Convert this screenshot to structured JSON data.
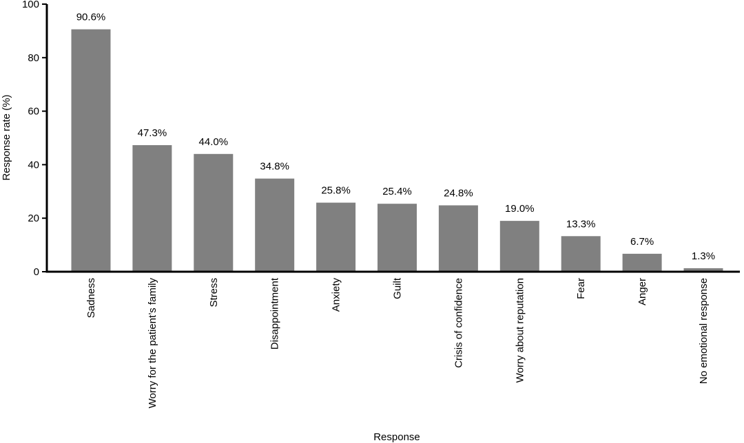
{
  "chart_data": {
    "type": "bar",
    "title": "",
    "xlabel": "Response",
    "ylabel": "Response rate (%)",
    "ylim": [
      0,
      100
    ],
    "yticks": [
      0,
      20,
      40,
      60,
      80,
      100
    ],
    "grid": false,
    "categories": [
      "Sadness",
      "Worry for the patient’s family",
      "Stress",
      "Disappointment",
      "Anxiety",
      "Guilt",
      "Crisis of confidence",
      "Worry about reputation",
      "Fear",
      "Anger",
      "No emotional response"
    ],
    "values": [
      90.6,
      47.3,
      44.0,
      34.8,
      25.8,
      25.4,
      24.8,
      19.0,
      13.3,
      6.7,
      1.3
    ],
    "data_labels": [
      "90.6%",
      "47.3%",
      "44.0%",
      "34.8%",
      "25.8%",
      "25.4%",
      "24.8%",
      "19.0%",
      "13.3%",
      "6.7%",
      "1.3%"
    ],
    "colors": {
      "bar": "#808080",
      "axis": "#000000",
      "text": "#000000"
    }
  }
}
